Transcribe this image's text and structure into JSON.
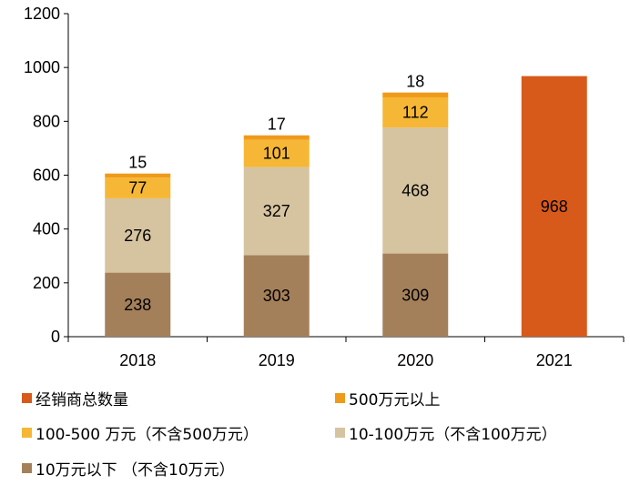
{
  "chart_data": {
    "type": "bar",
    "stacked": true,
    "categories": [
      "2018",
      "2019",
      "2020",
      "2021"
    ],
    "series": [
      {
        "name": "10万元以下 （不含10万元）",
        "color": "#A4805A",
        "values": [
          238,
          303,
          309,
          null
        ]
      },
      {
        "name": "10-100万元（不含100万元）",
        "color": "#D6C4A0",
        "values": [
          276,
          327,
          468,
          null
        ]
      },
      {
        "name": "100-500 万元（不含500万元）",
        "color": "#F5B735",
        "values": [
          77,
          101,
          112,
          null
        ]
      },
      {
        "name": "500万元以上",
        "color": "#F09A1A",
        "values": [
          15,
          17,
          18,
          null
        ]
      },
      {
        "name": "经销商总数量",
        "color": "#D85A1A",
        "values": [
          null,
          null,
          null,
          968
        ]
      }
    ],
    "ylim": [
      0,
      1200
    ],
    "yticks": [
      0,
      200,
      400,
      600,
      800,
      1000,
      1200
    ],
    "data_labels": true,
    "grid": false,
    "legend_position": "bottom"
  },
  "legend": {
    "items": [
      {
        "label": "经销商总数量",
        "color": "#D85A1A"
      },
      {
        "label": "500万元以上",
        "color": "#F09A1A"
      },
      {
        "label": "100-500 万元（不含500万元）",
        "color": "#F5B735"
      },
      {
        "label": "10-100万元（不含100万元）",
        "color": "#D6C4A0"
      },
      {
        "label": "10万元以下 （不含10万元）",
        "color": "#A4805A"
      }
    ]
  }
}
